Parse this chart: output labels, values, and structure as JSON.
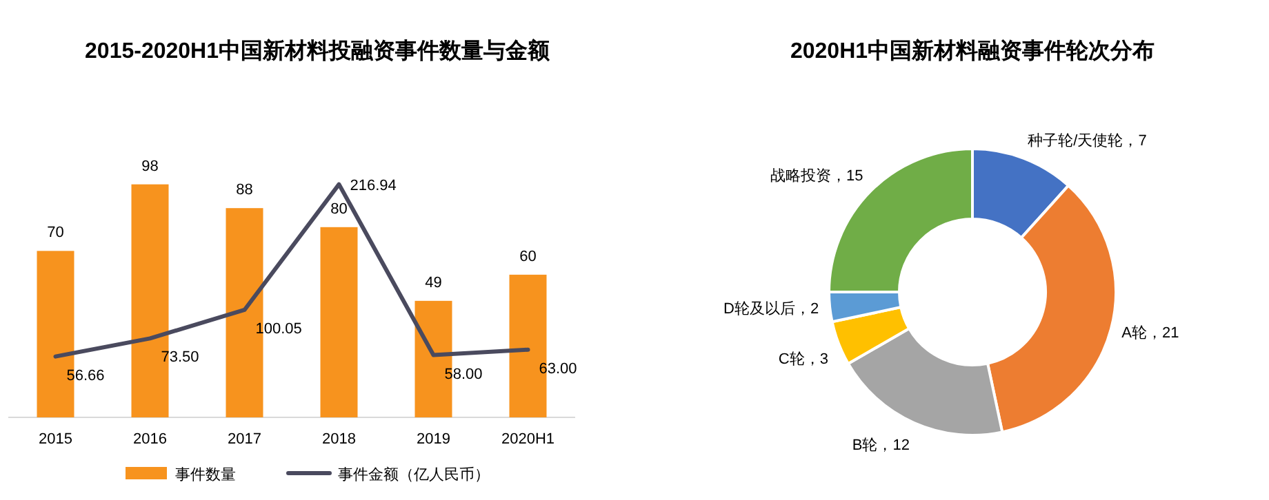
{
  "chart_data": [
    {
      "type": "bar",
      "title": "2015-2020H1中国新材料投融资事件数量与金额",
      "categories": [
        "2015",
        "2016",
        "2017",
        "2018",
        "2019",
        "2020H1"
      ],
      "data_labels": true,
      "legend": "bottom",
      "series": [
        {
          "name": "事件数量",
          "type": "bar",
          "color": "#f7931e",
          "values": [
            70,
            98,
            88,
            80,
            49,
            60
          ]
        },
        {
          "name": "事件金额（亿人民币）",
          "type": "line",
          "axis": "y2",
          "color": "#4a4a5e",
          "values": [
            56.66,
            73.5,
            100.05,
            216.94,
            58.0,
            63.0
          ],
          "value_labels": [
            "56.66",
            "73.50",
            "100.05",
            "216.94",
            "58.00",
            "63.00"
          ]
        }
      ]
    },
    {
      "type": "donut",
      "title": "2020H1中国新材料融资事件轮次分布",
      "value_labels": [
        "，7",
        "，21",
        "，12",
        "，3",
        "，2",
        "，15"
      ],
      "categories": [
        "种子轮/天使轮",
        "A轮",
        "B轮",
        "C轮",
        "D轮及以后",
        "战略投资"
      ],
      "values": [
        7,
        21,
        12,
        3,
        2,
        15
      ],
      "colors": [
        "#4472c4",
        "#ed7d31",
        "#a5a5a5",
        "#ffc000",
        "#5b9bd5",
        "#70ad47"
      ]
    }
  ]
}
